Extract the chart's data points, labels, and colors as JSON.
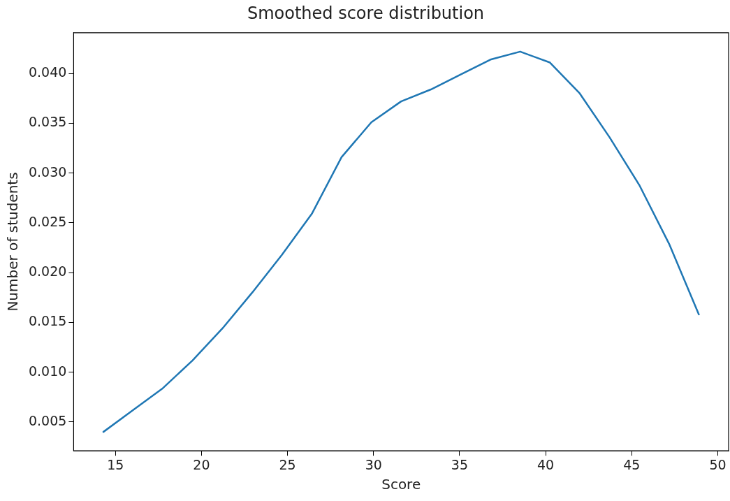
{
  "chart_data": {
    "type": "line",
    "title": "Smoothed score distribution",
    "xlabel": "Score",
    "ylabel": "Number of students",
    "x": [
      14.3,
      16.03,
      17.76,
      19.49,
      21.22,
      22.95,
      24.68,
      26.41,
      28.14,
      29.87,
      31.6,
      33.33,
      35.06,
      36.79,
      38.52,
      40.25,
      41.98,
      43.71,
      45.44,
      47.17,
      48.9
    ],
    "series": [
      {
        "color": "#1f77b4",
        "values": [
          0.004,
          0.0062,
          0.0084,
          0.0112,
          0.0144,
          0.018,
          0.0218,
          0.0259,
          0.0316,
          0.0351,
          0.0372,
          0.0384,
          0.0399,
          0.0414,
          0.0422,
          0.0411,
          0.038,
          0.0336,
          0.0288,
          0.0229,
          0.0158
        ]
      }
    ],
    "xlim": [
      12.57,
      50.63
    ],
    "xticks": [
      15,
      20,
      25,
      30,
      35,
      40,
      45,
      50
    ],
    "ylim": [
      0.0021,
      0.0441
    ],
    "yticks": [
      {
        "value": 0.005,
        "label": "0.005"
      },
      {
        "value": 0.01,
        "label": "0.010"
      },
      {
        "value": 0.015,
        "label": "0.015"
      },
      {
        "value": 0.02,
        "label": "0.020"
      },
      {
        "value": 0.025,
        "label": "0.025"
      },
      {
        "value": 0.03,
        "label": "0.030"
      },
      {
        "value": 0.035,
        "label": "0.035"
      },
      {
        "value": 0.04,
        "label": "0.040"
      }
    ],
    "grid": false,
    "legend": false,
    "marker": "none",
    "line_style": "solid"
  }
}
